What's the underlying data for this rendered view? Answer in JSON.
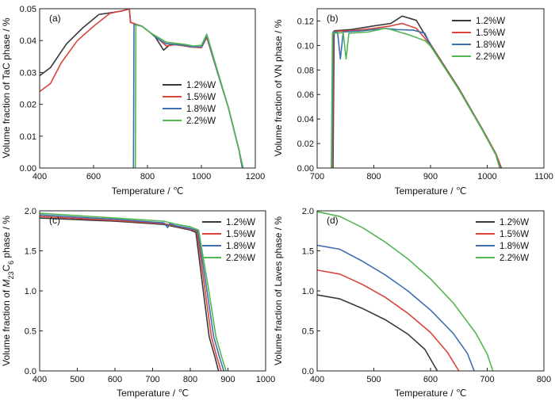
{
  "chart_data": [
    {
      "type": "line",
      "panel": "(a)",
      "xlabel": "Temperature / ℃",
      "ylabel": "Volume fraction of TaC phase / %",
      "xlim": [
        400,
        1200
      ],
      "ylim": [
        0,
        0.05
      ],
      "xticks": [
        400,
        600,
        800,
        1000,
        1200
      ],
      "yticks": [
        0.0,
        0.01,
        0.02,
        0.03,
        0.04,
        0.05
      ],
      "xtick_labels": [
        "400",
        "600",
        "800",
        "1000",
        "1200"
      ],
      "ytick_labels": [
        "0.00",
        "0.01",
        "0.02",
        "0.03",
        "0.04",
        "0.05"
      ],
      "legend_position": "center-right",
      "series": [
        {
          "name": "1.2%W",
          "color": "#3a3a3a",
          "points": [
            [
              400,
              0.029
            ],
            [
              440,
              0.0315
            ],
            [
              500,
              0.039
            ],
            [
              560,
              0.044
            ],
            [
              620,
              0.0482
            ],
            [
              660,
              0.0487
            ],
            [
              700,
              0.0492
            ],
            [
              733,
              0.0499
            ],
            [
              737,
              0.0457
            ],
            [
              780,
              0.0445
            ],
            [
              810,
              0.0425
            ],
            [
              830,
              0.041
            ],
            [
              860,
              0.037
            ],
            [
              880,
              0.0385
            ],
            [
              900,
              0.0388
            ],
            [
              930,
              0.0385
            ],
            [
              960,
              0.038
            ],
            [
              1000,
              0.0378
            ],
            [
              1020,
              0.041
            ],
            [
              1060,
              0.03
            ],
            [
              1100,
              0.019
            ],
            [
              1140,
              0.0055
            ],
            [
              1152,
              0.0
            ]
          ]
        },
        {
          "name": "1.5%W",
          "color": "#d9433a",
          "points": [
            [
              400,
              0.024
            ],
            [
              440,
              0.0265
            ],
            [
              480,
              0.033
            ],
            [
              540,
              0.04
            ],
            [
              600,
              0.0445
            ],
            [
              660,
              0.0485
            ],
            [
              733,
              0.0499
            ],
            [
              737,
              0.0457
            ],
            [
              780,
              0.0445
            ],
            [
              810,
              0.0425
            ],
            [
              840,
              0.0405
            ],
            [
              870,
              0.0383
            ],
            [
              900,
              0.0387
            ],
            [
              930,
              0.0384
            ],
            [
              960,
              0.038
            ],
            [
              1000,
              0.0378
            ],
            [
              1020,
              0.041
            ],
            [
              1060,
              0.03
            ],
            [
              1100,
              0.019
            ],
            [
              1140,
              0.0055
            ],
            [
              1152,
              0.0
            ]
          ]
        },
        {
          "name": "1.8%W",
          "color": "#3f6fb0",
          "points": [
            [
              748,
              0.0
            ],
            [
              750,
              0.045
            ],
            [
              780,
              0.0445
            ],
            [
              810,
              0.0425
            ],
            [
              840,
              0.0405
            ],
            [
              870,
              0.039
            ],
            [
              900,
              0.0388
            ],
            [
              940,
              0.0385
            ],
            [
              970,
              0.038
            ],
            [
              1000,
              0.038
            ],
            [
              1020,
              0.0415
            ],
            [
              1060,
              0.03
            ],
            [
              1100,
              0.019
            ],
            [
              1140,
              0.0055
            ],
            [
              1152,
              0.0
            ]
          ]
        },
        {
          "name": "2.2%W",
          "color": "#52b651",
          "points": [
            [
              755,
              0.0
            ],
            [
              757,
              0.045
            ],
            [
              780,
              0.0445
            ],
            [
              810,
              0.0425
            ],
            [
              840,
              0.041
            ],
            [
              870,
              0.0395
            ],
            [
              900,
              0.0392
            ],
            [
              940,
              0.0388
            ],
            [
              970,
              0.0383
            ],
            [
              1000,
              0.0385
            ],
            [
              1020,
              0.042
            ],
            [
              1060,
              0.0305
            ],
            [
              1100,
              0.019
            ],
            [
              1140,
              0.0055
            ],
            [
              1155,
              0.0
            ]
          ]
        }
      ]
    },
    {
      "type": "line",
      "panel": "(b)",
      "xlabel": "Temperature / ℃",
      "ylabel": "Volume fraction of VN phase / %",
      "xlim": [
        700,
        1100
      ],
      "ylim": [
        0,
        0.13
      ],
      "xticks": [
        700,
        800,
        900,
        1000,
        1100
      ],
      "yticks": [
        0.0,
        0.02,
        0.04,
        0.06,
        0.08,
        0.1,
        0.12
      ],
      "xtick_labels": [
        "700",
        "800",
        "900",
        "1000",
        "1100"
      ],
      "ytick_labels": [
        "0.00",
        "0.02",
        "0.04",
        "0.06",
        "0.08",
        "0.10",
        "0.12"
      ],
      "legend_position": "top-right",
      "series": [
        {
          "name": "1.2%W",
          "color": "#3a3a3a",
          "points": [
            [
              728,
              0.0
            ],
            [
              730,
              0.112
            ],
            [
              760,
              0.113
            ],
            [
              800,
              0.116
            ],
            [
              830,
              0.118
            ],
            [
              850,
              0.124
            ],
            [
              875,
              0.1205
            ],
            [
              900,
              0.101
            ],
            [
              950,
              0.065
            ],
            [
              990,
              0.033
            ],
            [
              1015,
              0.012
            ],
            [
              1025,
              0.0
            ]
          ]
        },
        {
          "name": "1.5%W",
          "color": "#d9433a",
          "points": [
            [
              727,
              0.0
            ],
            [
              729,
              0.1115
            ],
            [
              760,
              0.112
            ],
            [
              800,
              0.114
            ],
            [
              830,
              0.116
            ],
            [
              850,
              0.118
            ],
            [
              875,
              0.114
            ],
            [
              900,
              0.1005
            ],
            [
              950,
              0.0645
            ],
            [
              990,
              0.033
            ],
            [
              1015,
              0.012
            ],
            [
              1025,
              0.0
            ]
          ]
        },
        {
          "name": "1.8%W",
          "color": "#3f6fb0",
          "points": [
            [
              726,
              0.0
            ],
            [
              728,
              0.111
            ],
            [
              736,
              0.111
            ],
            [
              741,
              0.089
            ],
            [
              746,
              0.111
            ],
            [
              780,
              0.112
            ],
            [
              820,
              0.114
            ],
            [
              840,
              0.113
            ],
            [
              870,
              0.1125
            ],
            [
              890,
              0.11
            ],
            [
              900,
              0.1
            ],
            [
              950,
              0.064
            ],
            [
              990,
              0.0325
            ],
            [
              1015,
              0.011
            ],
            [
              1023,
              0.0
            ]
          ]
        },
        {
          "name": "2.2%W",
          "color": "#52b651",
          "points": [
            [
              725,
              0.0
            ],
            [
              727,
              0.11
            ],
            [
              746,
              0.1105
            ],
            [
              751,
              0.089
            ],
            [
              756,
              0.11
            ],
            [
              790,
              0.111
            ],
            [
              820,
              0.114
            ],
            [
              830,
              0.113
            ],
            [
              860,
              0.109
            ],
            [
              890,
              0.104
            ],
            [
              900,
              0.0995
            ],
            [
              950,
              0.064
            ],
            [
              990,
              0.032
            ],
            [
              1015,
              0.011
            ],
            [
              1022,
              0.0
            ]
          ]
        }
      ]
    },
    {
      "type": "line",
      "panel": "(c)",
      "xlabel": "Temperature / ℃",
      "ylabel": "Volume fraction of M23C6 phase / %",
      "xlim": [
        400,
        1000
      ],
      "ylim": [
        0,
        2.0
      ],
      "xticks": [
        400,
        500,
        600,
        700,
        800,
        900,
        1000
      ],
      "yticks": [
        0.0,
        0.5,
        1.0,
        1.5,
        2.0
      ],
      "xtick_labels": [
        "400",
        "500",
        "600",
        "700",
        "800",
        "900",
        "1000"
      ],
      "ytick_labels": [
        "0.0",
        "0.5",
        "1.0",
        "1.5",
        "2.0"
      ],
      "legend_position": "top-right",
      "series": [
        {
          "name": "1.2%W",
          "color": "#3a3a3a",
          "points": [
            [
              400,
              1.91
            ],
            [
              500,
              1.89
            ],
            [
              600,
              1.87
            ],
            [
              700,
              1.84
            ],
            [
              730,
              1.83
            ],
            [
              760,
              1.8
            ],
            [
              800,
              1.76
            ],
            [
              815,
              1.73
            ],
            [
              835,
              0.98
            ],
            [
              850,
              0.43
            ],
            [
              865,
              0.18
            ],
            [
              875,
              0.0
            ]
          ]
        },
        {
          "name": "1.5%W",
          "color": "#d9433a",
          "points": [
            [
              400,
              1.93
            ],
            [
              500,
              1.905
            ],
            [
              600,
              1.88
            ],
            [
              700,
              1.85
            ],
            [
              730,
              1.84
            ],
            [
              760,
              1.81
            ],
            [
              800,
              1.77
            ],
            [
              818,
              1.74
            ],
            [
              840,
              0.98
            ],
            [
              856,
              0.43
            ],
            [
              870,
              0.18
            ],
            [
              882,
              0.0
            ]
          ]
        },
        {
          "name": "1.8%W",
          "color": "#3f6fb0",
          "points": [
            [
              400,
              1.95
            ],
            [
              500,
              1.92
            ],
            [
              600,
              1.895
            ],
            [
              700,
              1.86
            ],
            [
              730,
              1.85
            ],
            [
              740,
              1.79
            ],
            [
              745,
              1.84
            ],
            [
              760,
              1.815
            ],
            [
              800,
              1.78
            ],
            [
              820,
              1.75
            ],
            [
              845,
              0.98
            ],
            [
              862,
              0.43
            ],
            [
              877,
              0.18
            ],
            [
              889,
              0.0
            ]
          ]
        },
        {
          "name": "2.2%W",
          "color": "#52b651",
          "points": [
            [
              400,
              1.97
            ],
            [
              500,
              1.94
            ],
            [
              600,
              1.91
            ],
            [
              700,
              1.88
            ],
            [
              730,
              1.87
            ],
            [
              760,
              1.835
            ],
            [
              800,
              1.8
            ],
            [
              822,
              1.76
            ],
            [
              850,
              0.98
            ],
            [
              868,
              0.43
            ],
            [
              883,
              0.18
            ],
            [
              895,
              0.0
            ]
          ]
        }
      ]
    },
    {
      "type": "line",
      "panel": "(d)",
      "xlabel": "Temperature / ℃",
      "ylabel": "Volume fraction of Laves phase / %",
      "xlim": [
        400,
        800
      ],
      "ylim": [
        0,
        2.0
      ],
      "xticks": [
        400,
        500,
        600,
        700,
        800
      ],
      "yticks": [
        0.0,
        0.5,
        1.0,
        1.5,
        2.0
      ],
      "xtick_labels": [
        "400",
        "500",
        "600",
        "700",
        "800"
      ],
      "ytick_labels": [
        "0.0",
        "0.5",
        "1.0",
        "1.5",
        "2.0"
      ],
      "legend_position": "top-right",
      "series": [
        {
          "name": "1.2%W",
          "color": "#3a3a3a",
          "points": [
            [
              400,
              0.95
            ],
            [
              440,
              0.9
            ],
            [
              480,
              0.78
            ],
            [
              520,
              0.64
            ],
            [
              560,
              0.46
            ],
            [
              590,
              0.27
            ],
            [
              612,
              0.0
            ]
          ]
        },
        {
          "name": "1.5%W",
          "color": "#d9433a",
          "points": [
            [
              400,
              1.26
            ],
            [
              440,
              1.21
            ],
            [
              480,
              1.08
            ],
            [
              520,
              0.92
            ],
            [
              560,
              0.72
            ],
            [
              600,
              0.48
            ],
            [
              630,
              0.23
            ],
            [
              650,
              0.0
            ]
          ]
        },
        {
          "name": "1.8%W",
          "color": "#3f6fb0",
          "points": [
            [
              400,
              1.57
            ],
            [
              440,
              1.52
            ],
            [
              480,
              1.37
            ],
            [
              520,
              1.2
            ],
            [
              560,
              1.0
            ],
            [
              600,
              0.76
            ],
            [
              640,
              0.47
            ],
            [
              665,
              0.22
            ],
            [
              677,
              0.0
            ]
          ]
        },
        {
          "name": "2.2%W",
          "color": "#52b651",
          "points": [
            [
              400,
              1.99
            ],
            [
              440,
              1.93
            ],
            [
              480,
              1.79
            ],
            [
              520,
              1.61
            ],
            [
              560,
              1.4
            ],
            [
              600,
              1.15
            ],
            [
              640,
              0.85
            ],
            [
              680,
              0.47
            ],
            [
              700,
              0.21
            ],
            [
              710,
              0.0
            ]
          ]
        }
      ]
    }
  ]
}
